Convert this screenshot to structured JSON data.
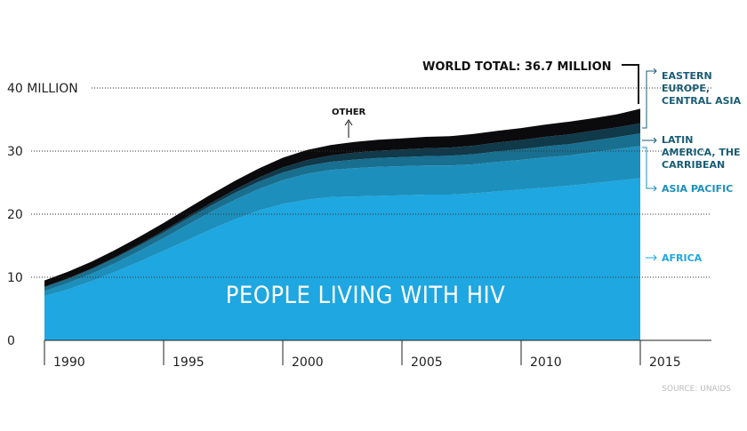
{
  "chart_data": {
    "type": "area",
    "title": "PEOPLE LIVING WITH HIV",
    "source": "SOURCE: UNAIDS",
    "x": [
      1990,
      1991,
      1992,
      1993,
      1994,
      1995,
      1996,
      1997,
      1998,
      1999,
      2000,
      2001,
      2002,
      2003,
      2004,
      2005,
      2006,
      2007,
      2008,
      2009,
      2010,
      2011,
      2012,
      2013,
      2014,
      2015
    ],
    "xlim": [
      1990,
      2015
    ],
    "ylim": [
      0,
      40
    ],
    "x_ticks": [
      {
        "value": 1990,
        "label": "1990"
      },
      {
        "value": 1995,
        "label": "1995"
      },
      {
        "value": 2000,
        "label": "2000"
      },
      {
        "value": 2005,
        "label": "2005"
      },
      {
        "value": 2010,
        "label": "2010"
      },
      {
        "value": 2015,
        "label": "2015"
      }
    ],
    "y_ticks": [
      {
        "value": 0,
        "label": "0"
      },
      {
        "value": 10,
        "label": "10"
      },
      {
        "value": 20,
        "label": "20"
      },
      {
        "value": 30,
        "label": "30"
      },
      {
        "value": 40,
        "label": "40 MILLION"
      }
    ],
    "series": [
      {
        "name": "AFRICA",
        "color": "#1ea7e0",
        "label_color": "#1ea7e0",
        "values": [
          7.0,
          8.1,
          9.4,
          10.9,
          12.5,
          14.2,
          15.9,
          17.6,
          19.2,
          20.6,
          21.6,
          22.3,
          22.7,
          22.8,
          22.9,
          23.0,
          23.1,
          23.1,
          23.3,
          23.6,
          23.9,
          24.2,
          24.5,
          24.9,
          25.3,
          25.7
        ]
      },
      {
        "name": "ASIA PACIFIC",
        "color": "#1d8fbd",
        "label_color": "#1d8fbd",
        "values": [
          0.8,
          1.0,
          1.2,
          1.4,
          1.7,
          2.0,
          2.4,
          2.8,
          3.1,
          3.4,
          3.8,
          4.1,
          4.3,
          4.5,
          4.6,
          4.6,
          4.6,
          4.6,
          4.6,
          4.7,
          4.7,
          4.8,
          4.8,
          4.9,
          5.0,
          5.1
        ]
      },
      {
        "name": "LATIN AMERICA, THE CARRIBEAN",
        "color": "#186f8f",
        "label_color": "#1a5d75",
        "values": [
          0.6,
          0.65,
          0.7,
          0.8,
          0.85,
          0.9,
          1.0,
          1.0,
          1.1,
          1.15,
          1.2,
          1.25,
          1.3,
          1.35,
          1.4,
          1.45,
          1.5,
          1.55,
          1.6,
          1.65,
          1.7,
          1.75,
          1.8,
          1.85,
          1.9,
          2.0
        ]
      },
      {
        "name": "EASTERN EUROPE, CENTRAL ASIA",
        "color": "#10394a",
        "label_color": "#1a5d75",
        "values": [
          0.1,
          0.1,
          0.12,
          0.15,
          0.2,
          0.25,
          0.3,
          0.4,
          0.5,
          0.65,
          0.8,
          0.9,
          1.0,
          1.1,
          1.15,
          1.2,
          1.25,
          1.3,
          1.35,
          1.4,
          1.45,
          1.5,
          1.55,
          1.55,
          1.55,
          1.6
        ]
      },
      {
        "name": "OTHER",
        "color": "#0b0b0d",
        "label_color": "#111111",
        "values": [
          1.0,
          1.05,
          1.1,
          1.15,
          1.2,
          1.25,
          1.3,
          1.35,
          1.4,
          1.45,
          1.55,
          1.6,
          1.65,
          1.7,
          1.75,
          1.75,
          1.8,
          1.8,
          1.85,
          1.85,
          1.9,
          1.95,
          2.0,
          2.0,
          2.05,
          2.3
        ]
      }
    ],
    "annotations": {
      "world_total": "WORLD TOTAL: 36.7 MILLION",
      "other": "OTHER",
      "region_labels": [
        "EASTERN EUROPE, CENTRAL ASIA",
        "LATIN AMERICA, THE CARRIBEAN",
        "ASIA PACIFIC",
        "AFRICA"
      ]
    }
  }
}
